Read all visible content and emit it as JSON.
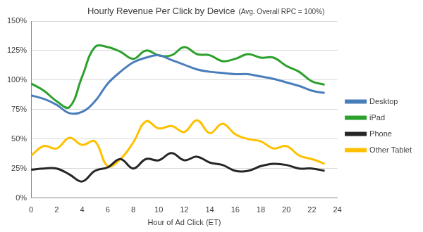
{
  "chart_data": {
    "type": "line",
    "title": "Hourly Revenue Per Click by Device",
    "subtitle": "(Avg. Overall RPC = 100%)",
    "x_label": "Hour of Ad Click (ET)",
    "x": [
      0,
      1,
      2,
      3,
      4,
      5,
      6,
      7,
      8,
      9,
      10,
      11,
      12,
      13,
      14,
      15,
      16,
      17,
      18,
      19,
      20,
      21,
      22,
      23
    ],
    "series": [
      {
        "name": "Desktop",
        "color": "#4a7ebb",
        "values": [
          87,
          84,
          79,
          72,
          73,
          82,
          97,
          107,
          115,
          119,
          121,
          117,
          113,
          109,
          107,
          106,
          105,
          105,
          103,
          101,
          98,
          95,
          91,
          89
        ]
      },
      {
        "name": "iPad",
        "color": "#2ca02c",
        "values": [
          97,
          91,
          82,
          77,
          103,
          128,
          128,
          124,
          118,
          125,
          121,
          121,
          128,
          122,
          121,
          116,
          118,
          122,
          119,
          119,
          112,
          107,
          99,
          96
        ]
      },
      {
        "name": "Phone",
        "color": "#262626",
        "values": [
          24,
          25,
          25,
          20,
          14,
          23,
          26,
          33,
          25,
          33,
          32,
          38,
          32,
          35,
          30,
          28,
          23,
          23,
          27,
          29,
          28,
          25,
          25,
          23
        ]
      },
      {
        "name": "Other Tablet",
        "color": "#ffc000",
        "values": [
          36,
          44,
          42,
          51,
          45,
          48,
          27,
          33,
          47,
          65,
          59,
          61,
          56,
          66,
          55,
          63,
          54,
          50,
          48,
          42,
          44,
          36,
          33,
          29
        ]
      }
    ],
    "xlim": [
      0,
      24
    ],
    "xticks": [
      0,
      2,
      4,
      6,
      8,
      10,
      12,
      14,
      16,
      18,
      20,
      22,
      24
    ],
    "ylim": [
      0,
      150
    ],
    "yticks": [
      {
        "value": 0,
        "label": "0%"
      },
      {
        "value": 25,
        "label": "25%"
      },
      {
        "value": 50,
        "label": "50%"
      },
      {
        "value": 75,
        "label": "75%"
      },
      {
        "value": 100,
        "label": "100%"
      },
      {
        "value": 125,
        "label": "125%"
      },
      {
        "value": 150,
        "label": "150%"
      }
    ],
    "grid": true,
    "legend": "right"
  }
}
